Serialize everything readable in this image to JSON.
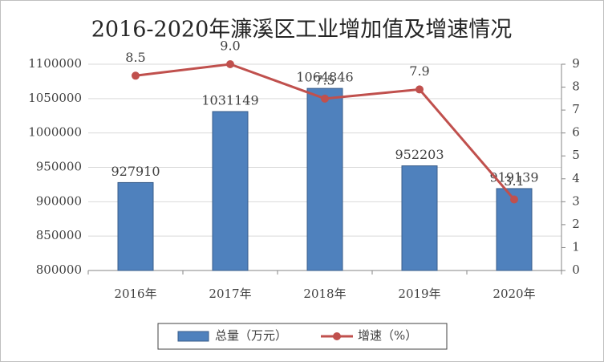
{
  "chart_data": {
    "type": "combo",
    "title": "2016-2020年濂溪区工业增加值及增速情况",
    "categories": [
      "2016年",
      "2017年",
      "2018年",
      "2019年",
      "2020年"
    ],
    "series": [
      {
        "name": "总量（万元）",
        "type": "bar",
        "color": "#4f81bd",
        "values": [
          927910,
          1031149,
          1064846,
          952203,
          919139
        ]
      },
      {
        "name": "增速（%）",
        "type": "line",
        "axis": "y2",
        "color": "#c0504d",
        "values": [
          8.5,
          9.0,
          7.5,
          7.9,
          3.1
        ],
        "value_labels": [
          "8.5",
          "9.0",
          "7.5",
          "7.9",
          "3.1"
        ]
      }
    ],
    "ylim": [
      800000,
      1100000
    ],
    "yticks": [
      800000,
      850000,
      900000,
      950000,
      1000000,
      1050000,
      1100000
    ],
    "y2lim": [
      0,
      9
    ],
    "y2ticks": [
      0,
      1,
      2,
      3,
      4,
      5,
      6,
      7,
      8,
      9
    ],
    "grid": true,
    "legend": "bottom"
  }
}
